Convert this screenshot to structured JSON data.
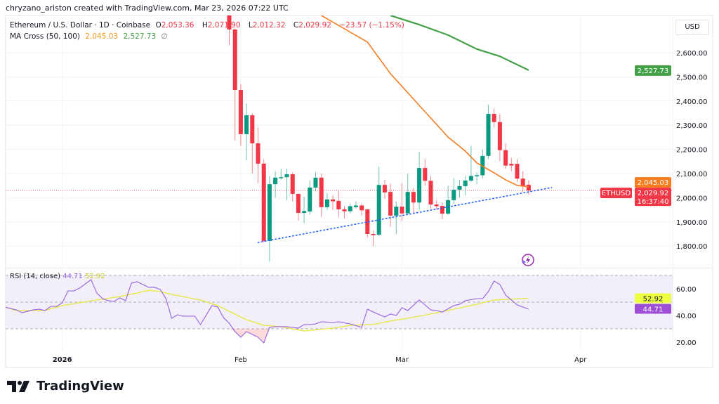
{
  "credit": "chryzano_ariston created with TradingView.com, Mar 23, 2026 07:22 UTC",
  "legend": {
    "symbol": "Ethereum / U.S. Dollar · 1D · Coinbase",
    "open_label": "O",
    "open": "2,053.36",
    "high_label": "H",
    "high": "2,071.90",
    "low_label": "L",
    "low": "2,012.32",
    "close_label": "C",
    "close": "2,029.92",
    "change": "−23.57 (−1.15%)",
    "ma_name": "MA Cross (50, 100)",
    "ma_fast": "2,045.03",
    "ma_slow": "2,527.73",
    "ma_extra": "∅"
  },
  "rsi_legend": {
    "name": "RSI (14, close)",
    "rsi": "44.71",
    "ma": "52.92"
  },
  "currency": "USD",
  "badges": {
    "ma_slow": "2,527.73",
    "ma_fast": "2,045.03",
    "symbol": "ETHUSD",
    "price": "2,029.92",
    "countdown": "16:37:40",
    "rsi": "44.71",
    "rsi_ma": "52.92"
  },
  "logo": {
    "text": "TradingView",
    "icon": "tradingview-logo-icon"
  },
  "colors": {
    "up": "#089981",
    "down": "#f23645",
    "ma_fast": "#f57c1f",
    "ma_slow": "#43a047",
    "rsi": "#9c6ade",
    "rsi_ma": "#e6e84a",
    "trendline": "#2962ff"
  },
  "chart_data": [
    {
      "type": "candlestick",
      "title": "Ethereum / U.S. Dollar · 1D · Coinbase",
      "ylabel": "USD",
      "ylim": [
        1720,
        2730
      ],
      "y_ticks": [
        "1,800.00",
        "1,900.00",
        "2,000.00",
        "2,100.00",
        "2,200.00",
        "2,300.00",
        "2,400.00",
        "2,500.00",
        "2,600.00"
      ],
      "x_ticks": [
        "2026",
        "Feb",
        "Mar",
        "Apr"
      ],
      "x_tick_dates": [
        "2026-01-01",
        "2026-02-01",
        "2026-03-01",
        "2026-04-01"
      ],
      "grid": true,
      "candles_columns": [
        "date",
        "open",
        "high",
        "low",
        "close"
      ],
      "candles": [
        [
          "2026-01-30",
          2770,
          2790,
          2630,
          2696
        ],
        [
          "2026-01-31",
          2696,
          2700,
          2237,
          2446
        ],
        [
          "2026-02-01",
          2446,
          2470,
          2215,
          2263
        ],
        [
          "2026-02-02",
          2263,
          2390,
          2155,
          2341
        ],
        [
          "2026-02-03",
          2341,
          2350,
          2100,
          2225
        ],
        [
          "2026-02-04",
          2225,
          2290,
          2060,
          2141
        ],
        [
          "2026-02-05",
          2141,
          2160,
          1815,
          1821
        ],
        [
          "2026-02-06",
          1821,
          2090,
          1735,
          2056
        ],
        [
          "2026-02-07",
          2056,
          2110,
          2000,
          2083
        ],
        [
          "2026-02-08",
          2083,
          2120,
          2075,
          2085
        ],
        [
          "2026-02-09",
          2085,
          2120,
          1990,
          2097
        ],
        [
          "2026-02-10",
          2097,
          2105,
          1985,
          2016
        ],
        [
          "2026-02-11",
          2016,
          2016,
          1905,
          1937
        ],
        [
          "2026-02-12",
          1937,
          2005,
          1895,
          1945
        ],
        [
          "2026-02-13",
          1943,
          2070,
          1930,
          2042
        ],
        [
          "2026-02-14",
          2042,
          2105,
          2025,
          2083
        ],
        [
          "2026-02-15",
          2083,
          2100,
          1920,
          1961
        ],
        [
          "2026-02-16",
          1961,
          2020,
          1950,
          1993
        ],
        [
          "2026-02-17",
          1993,
          2010,
          1950,
          1985
        ],
        [
          "2026-02-18",
          1987,
          2030,
          1920,
          1952
        ],
        [
          "2026-02-19",
          1952,
          1965,
          1915,
          1944
        ],
        [
          "2026-02-20",
          1944,
          1975,
          1935,
          1965
        ],
        [
          "2026-02-21",
          1961,
          1985,
          1955,
          1968
        ],
        [
          "2026-02-22",
          1968,
          1975,
          1925,
          1948
        ],
        [
          "2026-02-23",
          1952,
          1952,
          1835,
          1850
        ],
        [
          "2026-02-24",
          1850,
          1865,
          1800,
          1845
        ],
        [
          "2026-02-25",
          1847,
          2130,
          1840,
          2053
        ],
        [
          "2026-02-26",
          2053,
          2075,
          1995,
          2022
        ],
        [
          "2026-02-27",
          2024,
          2060,
          1880,
          1926
        ],
        [
          "2026-02-28",
          1926,
          1985,
          1850,
          1963
        ],
        [
          "2026-03-01",
          1963,
          2060,
          1905,
          1935
        ],
        [
          "2026-03-02",
          1935,
          2100,
          1935,
          2024
        ],
        [
          "2026-03-03",
          2024,
          2040,
          1935,
          1980
        ],
        [
          "2026-03-04",
          1980,
          2190,
          1950,
          2123
        ],
        [
          "2026-03-05",
          2123,
          2160,
          2050,
          2070
        ],
        [
          "2026-03-06",
          2070,
          2090,
          1955,
          1972
        ],
        [
          "2026-03-07",
          1972,
          1990,
          1950,
          1965
        ],
        [
          "2026-03-08",
          1966,
          1980,
          1910,
          1934
        ],
        [
          "2026-03-09",
          1934,
          2050,
          1930,
          1990
        ],
        [
          "2026-03-10",
          1990,
          2080,
          1975,
          2033
        ],
        [
          "2026-03-11",
          2033,
          2075,
          2000,
          2048
        ],
        [
          "2026-03-12",
          2048,
          2090,
          2010,
          2071
        ],
        [
          "2026-03-13",
          2071,
          2215,
          2065,
          2090
        ],
        [
          "2026-03-14",
          2090,
          2105,
          2055,
          2093
        ],
        [
          "2026-03-15",
          2093,
          2200,
          2080,
          2173
        ],
        [
          "2026-03-16",
          2173,
          2385,
          2160,
          2347
        ],
        [
          "2026-03-17",
          2347,
          2370,
          2290,
          2313
        ],
        [
          "2026-03-18",
          2313,
          2345,
          2150,
          2197
        ],
        [
          "2026-03-19",
          2197,
          2225,
          2120,
          2133
        ],
        [
          "2026-03-20",
          2140,
          2165,
          2110,
          2133
        ],
        [
          "2026-03-21",
          2140,
          2160,
          2065,
          2079
        ],
        [
          "2026-03-22",
          2079,
          2110,
          2025,
          2047
        ],
        [
          "2026-03-23",
          2053.36,
          2071.9,
          2012.32,
          2029.92
        ]
      ],
      "series": [
        {
          "name": "MA 50",
          "points": [
            [
              "2026-02-15",
              2754
            ],
            [
              "2026-02-23",
              2644
            ],
            [
              "2026-02-27",
              2513
            ],
            [
              "2026-03-04",
              2382
            ],
            [
              "2026-03-09",
              2251
            ],
            [
              "2026-03-12",
              2193
            ],
            [
              "2026-03-14",
              2144
            ],
            [
              "2026-03-17",
              2103
            ],
            [
              "2026-03-19",
              2074
            ],
            [
              "2026-03-21",
              2051
            ],
            [
              "2026-03-23",
              2045.03
            ]
          ]
        },
        {
          "name": "MA 100",
          "points": [
            [
              "2026-02-27",
              2754
            ],
            [
              "2026-03-04",
              2716
            ],
            [
              "2026-03-09",
              2673
            ],
            [
              "2026-03-14",
              2615
            ],
            [
              "2026-03-18",
              2585
            ],
            [
              "2026-03-23",
              2527.73
            ]
          ]
        }
      ],
      "trendline": {
        "style": "dotted",
        "points": [
          [
            "2026-02-04",
            1815
          ],
          [
            "2026-03-27",
            2042
          ]
        ]
      },
      "last_price": 2029.92
    },
    {
      "type": "line",
      "title": "RSI (14, close)",
      "ylim": [
        13,
        78
      ],
      "y_ticks": [
        "20.00",
        "40.00",
        "60.00"
      ],
      "bands": [
        30,
        50,
        70
      ],
      "series": [
        {
          "name": "RSI",
          "points": [
            [
              "2025-12-22",
              46.3
            ],
            [
              "2025-12-24",
              44.2
            ],
            [
              "2025-12-25",
              42.1
            ],
            [
              "2025-12-27",
              44.2
            ],
            [
              "2025-12-28",
              44.7
            ],
            [
              "2025-12-29",
              43.7
            ],
            [
              "2025-12-30",
              46.8
            ],
            [
              "2025-12-31",
              46.8
            ],
            [
              "2026-01-01",
              49.5
            ],
            [
              "2026-01-02",
              58.4
            ],
            [
              "2026-01-03",
              58.4
            ],
            [
              "2026-01-04",
              60.5
            ],
            [
              "2026-01-06",
              66.8
            ],
            [
              "2026-01-07",
              56.8
            ],
            [
              "2026-01-08",
              52.6
            ],
            [
              "2026-01-09",
              51.1
            ],
            [
              "2026-01-10",
              50.5
            ],
            [
              "2026-01-11",
              53.2
            ],
            [
              "2026-01-12",
              51.1
            ],
            [
              "2026-01-13",
              64.2
            ],
            [
              "2026-01-14",
              65.3
            ],
            [
              "2026-01-16",
              61.1
            ],
            [
              "2026-01-17",
              61.1
            ],
            [
              "2026-01-18",
              59.5
            ],
            [
              "2026-01-19",
              52.6
            ],
            [
              "2026-01-20",
              37.9
            ],
            [
              "2026-01-21",
              40.5
            ],
            [
              "2026-01-22",
              39.5
            ],
            [
              "2026-01-24",
              39.5
            ],
            [
              "2026-01-25",
              33.2
            ],
            [
              "2026-01-27",
              47.4
            ],
            [
              "2026-01-28",
              46.3
            ],
            [
              "2026-01-29",
              38.4
            ],
            [
              "2026-01-30",
              34.2
            ],
            [
              "2026-01-31",
              27.9
            ],
            [
              "2026-02-01",
              23.7
            ],
            [
              "2026-02-02",
              27.9
            ],
            [
              "2026-02-04",
              23.7
            ],
            [
              "2026-02-05",
              19.5
            ],
            [
              "2026-02-06",
              31.1
            ],
            [
              "2026-02-07",
              31.6
            ],
            [
              "2026-02-09",
              31.6
            ],
            [
              "2026-02-11",
              30.5
            ],
            [
              "2026-02-12",
              33.2
            ],
            [
              "2026-02-13",
              33.2
            ],
            [
              "2026-02-14",
              33.7
            ],
            [
              "2026-02-15",
              35.3
            ],
            [
              "2026-02-17",
              34.7
            ],
            [
              "2026-02-18",
              35.3
            ],
            [
              "2026-02-20",
              33.7
            ],
            [
              "2026-02-22",
              31.1
            ],
            [
              "2026-02-23",
              44.7
            ],
            [
              "2026-02-24",
              42.6
            ],
            [
              "2026-02-26",
              38.9
            ],
            [
              "2026-02-27",
              41.1
            ],
            [
              "2026-02-28",
              40.0
            ],
            [
              "2026-03-01",
              45.8
            ],
            [
              "2026-03-02",
              43.7
            ],
            [
              "2026-03-04",
              51.6
            ],
            [
              "2026-03-06",
              44.2
            ],
            [
              "2026-03-07",
              43.7
            ],
            [
              "2026-03-08",
              42.6
            ],
            [
              "2026-03-10",
              47.4
            ],
            [
              "2026-03-11",
              48.4
            ],
            [
              "2026-03-12",
              51.1
            ],
            [
              "2026-03-14",
              52.6
            ],
            [
              "2026-03-15",
              52.6
            ],
            [
              "2026-03-16",
              57.9
            ],
            [
              "2026-03-17",
              65.8
            ],
            [
              "2026-03-18",
              63.2
            ],
            [
              "2026-03-19",
              55.3
            ],
            [
              "2026-03-20",
              51.6
            ],
            [
              "2026-03-21",
              47.9
            ],
            [
              "2026-03-23",
              44.71
            ]
          ]
        },
        {
          "name": "RSI-based MA",
          "points": [
            [
              "2025-12-22",
              46.3
            ],
            [
              "2025-12-24",
              43.7
            ],
            [
              "2025-12-29",
              43.7
            ],
            [
              "2026-01-01",
              47.4
            ],
            [
              "2026-01-07",
              51.6
            ],
            [
              "2026-01-11",
              54.2
            ],
            [
              "2026-01-14",
              56.8
            ],
            [
              "2026-01-16",
              58.9
            ],
            [
              "2026-01-18",
              57.9
            ],
            [
              "2026-01-20",
              55.8
            ],
            [
              "2026-01-25",
              51.6
            ],
            [
              "2026-01-28",
              47.4
            ],
            [
              "2026-02-02",
              36.8
            ],
            [
              "2026-02-05",
              32.6
            ],
            [
              "2026-02-08",
              31.6
            ],
            [
              "2026-02-12",
              28.4
            ],
            [
              "2026-02-17",
              30.5
            ],
            [
              "2026-02-20",
              32.6
            ],
            [
              "2026-02-24",
              33.2
            ],
            [
              "2026-02-27",
              35.8
            ],
            [
              "2026-03-02",
              37.9
            ],
            [
              "2026-03-06",
              41.1
            ],
            [
              "2026-03-10",
              44.7
            ],
            [
              "2026-03-14",
              48.4
            ],
            [
              "2026-03-17",
              51.6
            ],
            [
              "2026-03-23",
              52.92
            ]
          ]
        }
      ]
    }
  ]
}
